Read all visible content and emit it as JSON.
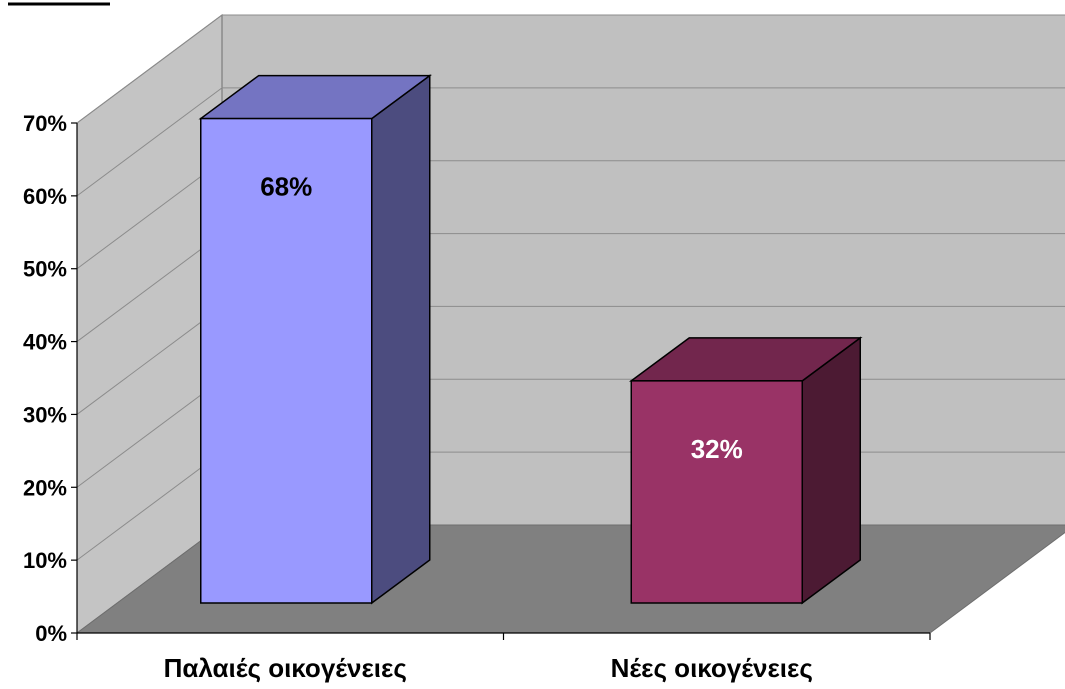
{
  "chart_data": {
    "type": "bar",
    "style": "3d-column",
    "categories": [
      "Παλαιές οικογένειες",
      "Νέες οικογένειες"
    ],
    "values": [
      68,
      32
    ],
    "data_labels": [
      "68%",
      "32%"
    ],
    "ylim": [
      0,
      70
    ],
    "yticks": [
      "0%",
      "10%",
      "20%",
      "30%",
      "40%",
      "50%",
      "60%",
      "70%"
    ],
    "grid": true,
    "legend": "none",
    "colors": {
      "bar_fronts": [
        "#9999ff",
        "#993366"
      ],
      "bar_tops": [
        "#7474c2",
        "#72264d"
      ],
      "bar_sides": [
        "#4c4c7f",
        "#4c1a33"
      ],
      "data_label_colors": [
        "#000000",
        "#ffffff"
      ],
      "back_wall": "#c0c0c0",
      "side_wall": "#c4c4c4",
      "floor": "#808080",
      "gridline": "#8c8c8c"
    }
  }
}
